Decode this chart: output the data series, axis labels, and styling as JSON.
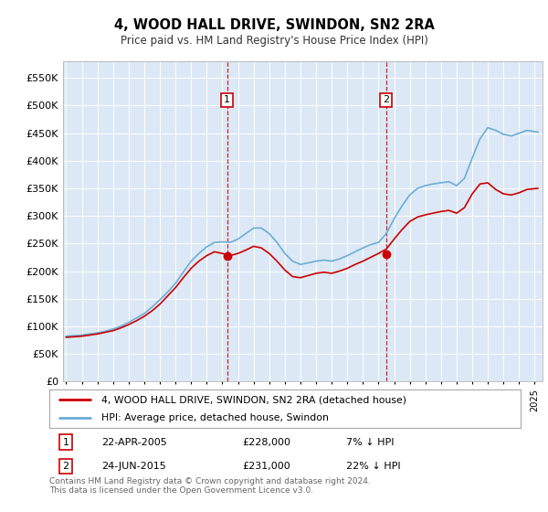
{
  "title": "4, WOOD HALL DRIVE, SWINDON, SN2 2RA",
  "subtitle": "Price paid vs. HM Land Registry's House Price Index (HPI)",
  "plot_bg_color": "#dce8f5",
  "ylabel_ticks": [
    "£0",
    "£50K",
    "£100K",
    "£150K",
    "£200K",
    "£250K",
    "£300K",
    "£350K",
    "£400K",
    "£450K",
    "£500K",
    "£550K"
  ],
  "ytick_values": [
    0,
    50000,
    100000,
    150000,
    200000,
    250000,
    300000,
    350000,
    400000,
    450000,
    500000,
    550000
  ],
  "ylim": [
    0,
    580000
  ],
  "xlim_start": 1994.8,
  "xlim_end": 2025.5,
  "hpi_color": "#6baed6",
  "price_color": "#cc0000",
  "purchase1_year": 2005.31,
  "purchase1_price": 228000,
  "purchase2_year": 2015.48,
  "purchase2_price": 231000,
  "legend_label1": "4, WOOD HALL DRIVE, SWINDON, SN2 2RA (detached house)",
  "legend_label2": "HPI: Average price, detached house, Swindon",
  "annotation1_label": "1",
  "annotation1_date": "22-APR-2005",
  "annotation1_price": "£228,000",
  "annotation1_hpi": "7% ↓ HPI",
  "annotation2_label": "2",
  "annotation2_date": "24-JUN-2015",
  "annotation2_price": "£231,000",
  "annotation2_hpi": "22% ↓ HPI",
  "footer": "Contains HM Land Registry data © Crown copyright and database right 2024.\nThis data is licensed under the Open Government Licence v3.0.",
  "hpi_years": [
    1995,
    1995.5,
    1996,
    1996.5,
    1997,
    1997.5,
    1998,
    1998.5,
    1999,
    1999.5,
    2000,
    2000.5,
    2001,
    2001.5,
    2002,
    2002.5,
    2003,
    2003.5,
    2004,
    2004.5,
    2005,
    2005.5,
    2006,
    2006.5,
    2007,
    2007.5,
    2008,
    2008.5,
    2009,
    2009.5,
    2010,
    2010.5,
    2011,
    2011.5,
    2012,
    2012.5,
    2013,
    2013.5,
    2014,
    2014.5,
    2015,
    2015.5,
    2016,
    2016.5,
    2017,
    2017.5,
    2018,
    2018.5,
    2019,
    2019.5,
    2020,
    2020.5,
    2021,
    2021.5,
    2022,
    2022.5,
    2023,
    2023.5,
    2024,
    2024.5,
    2025.2
  ],
  "hpi_values": [
    82000,
    83000,
    84000,
    86000,
    88000,
    91000,
    95000,
    100000,
    107000,
    115000,
    123000,
    135000,
    148000,
    162000,
    178000,
    198000,
    218000,
    232000,
    244000,
    252000,
    253000,
    252000,
    258000,
    268000,
    278000,
    278000,
    268000,
    252000,
    232000,
    218000,
    212000,
    215000,
    218000,
    220000,
    218000,
    222000,
    228000,
    235000,
    242000,
    248000,
    252000,
    268000,
    295000,
    318000,
    338000,
    350000,
    355000,
    358000,
    360000,
    362000,
    355000,
    368000,
    405000,
    440000,
    460000,
    455000,
    448000,
    445000,
    450000,
    455000,
    452000
  ],
  "price_years": [
    1995,
    1995.5,
    1996,
    1996.5,
    1997,
    1997.5,
    1998,
    1998.5,
    1999,
    1999.5,
    2000,
    2000.5,
    2001,
    2001.5,
    2002,
    2002.5,
    2003,
    2003.5,
    2004,
    2004.5,
    2005,
    2005.5,
    2006,
    2006.5,
    2007,
    2007.5,
    2008,
    2008.5,
    2009,
    2009.5,
    2010,
    2010.5,
    2011,
    2011.5,
    2012,
    2012.5,
    2013,
    2013.5,
    2014,
    2014.5,
    2015,
    2015.5,
    2016,
    2016.5,
    2017,
    2017.5,
    2018,
    2018.5,
    2019,
    2019.5,
    2020,
    2020.5,
    2021,
    2021.5,
    2022,
    2022.5,
    2023,
    2023.5,
    2024,
    2024.5,
    2025.2
  ],
  "price_values": [
    80000,
    81000,
    82000,
    84000,
    86000,
    89000,
    92000,
    97000,
    103000,
    110000,
    118000,
    128000,
    140000,
    155000,
    170000,
    188000,
    205000,
    218000,
    228000,
    235000,
    232000,
    228000,
    232000,
    238000,
    245000,
    242000,
    232000,
    218000,
    202000,
    190000,
    188000,
    192000,
    196000,
    198000,
    196000,
    200000,
    205000,
    212000,
    218000,
    225000,
    232000,
    240000,
    258000,
    275000,
    290000,
    298000,
    302000,
    305000,
    308000,
    310000,
    305000,
    315000,
    340000,
    358000,
    360000,
    348000,
    340000,
    338000,
    342000,
    348000,
    350000
  ]
}
